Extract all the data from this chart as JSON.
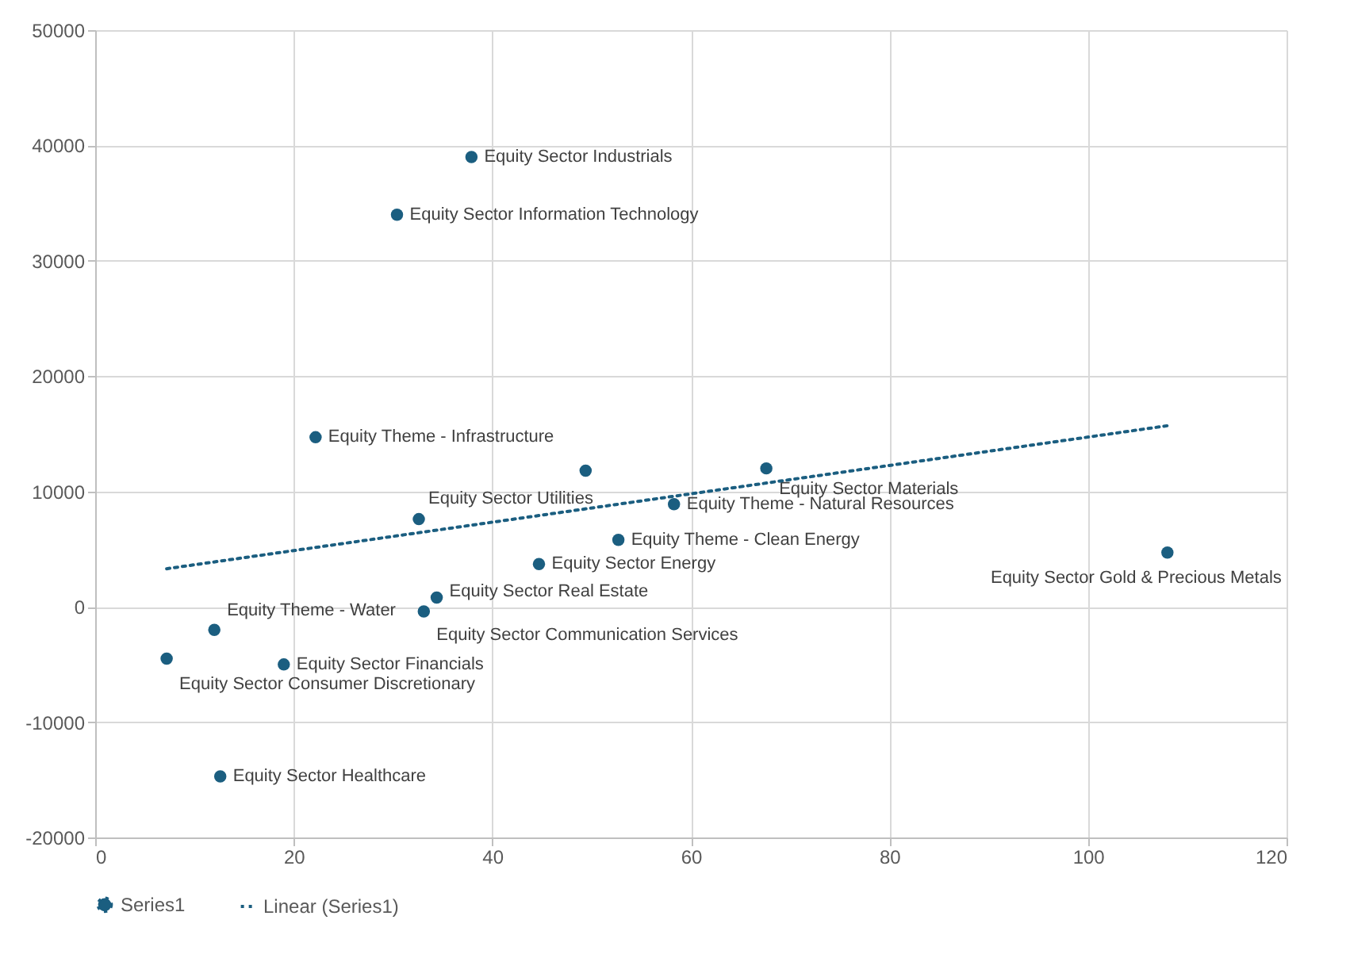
{
  "chart_data": {
    "type": "scatter",
    "grid": true,
    "legend": "bottom",
    "marker": "circle",
    "xlim": [
      0,
      120
    ],
    "xticks": [
      0,
      20,
      40,
      60,
      80,
      100,
      120
    ],
    "ylim": [
      -20000,
      50000
    ],
    "yticks": [
      -20000,
      -10000,
      0,
      10000,
      20000,
      30000,
      40000,
      50000
    ],
    "series": [
      {
        "type": "scatter",
        "name": "Series1",
        "color": "#1b5e80",
        "x": [
          37.9,
          30.4,
          22.2,
          49.4,
          67.6,
          32.6,
          58.3,
          52.7,
          44.7,
          34.4,
          33.1,
          7.2,
          12,
          19,
          12.6,
          108
        ],
        "values": [
          39000,
          34000,
          14700,
          11800,
          12000,
          7600,
          8900,
          5800,
          3700,
          800,
          -400,
          -4500,
          -2000,
          -5000,
          -14700,
          4700
        ],
        "value_labels": [
          "Equity Sector Industrials",
          "Equity Sector Information Technology",
          "Equity Theme - Infrastructure",
          null,
          "Equity Sector Materials",
          "Equity Sector Utilities",
          "Equity Theme - Natural Resources",
          "Equity Theme - Clean Energy",
          "Equity Sector Energy",
          "Equity Sector Real Estate",
          "Equity Sector Communication Services",
          "Equity Sector Consumer Discretionary",
          "Equity Theme - Water",
          "Equity Sector Financials",
          "Equity Sector Healthcare",
          "Equity Sector Gold & Precious Metals"
        ]
      },
      {
        "type": "line",
        "name": "Linear (Series1)",
        "color": "#1b5e80",
        "line_style": "dotted",
        "marker": "none",
        "x": [
          7.2,
          108
        ],
        "values": [
          3300,
          15700
        ]
      }
    ]
  }
}
